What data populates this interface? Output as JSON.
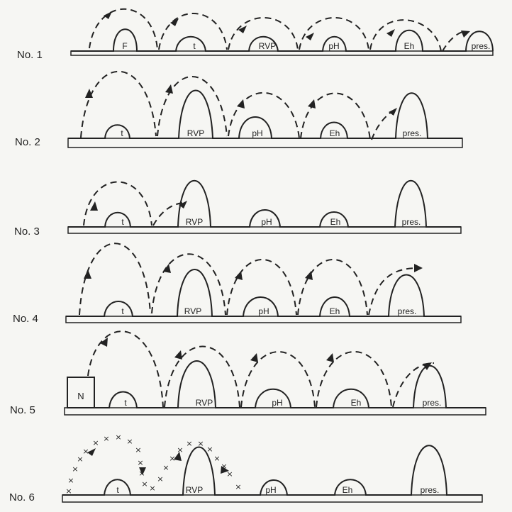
{
  "figure": {
    "rows": [
      {
        "id": "row1",
        "label": "No. 1",
        "hurdles": [
          "F",
          "t",
          "RVP",
          "pH",
          "Eh",
          "pres."
        ]
      },
      {
        "id": "row2",
        "label": "No. 2",
        "hurdles": [
          "t",
          "RVP",
          "pH",
          "Eh",
          "pres."
        ]
      },
      {
        "id": "row3",
        "label": "No. 3",
        "hurdles": [
          "t",
          "RVP",
          "pH",
          "Eh",
          "pres."
        ]
      },
      {
        "id": "row4",
        "label": "No. 4",
        "hurdles": [
          "t",
          "RVP",
          "pH",
          "Eh",
          "pres."
        ]
      },
      {
        "id": "row5",
        "label": "No. 5",
        "box_label": "N",
        "hurdles": [
          "t",
          "RVP",
          "pH",
          "Eh",
          "pres."
        ]
      },
      {
        "id": "row6",
        "label": "No. 6",
        "hurdles": [
          "t",
          "RVP",
          "pH",
          "Eh",
          "pres."
        ]
      }
    ]
  },
  "colors": {
    "ink": "#222222",
    "paper": "#f6f6f3"
  },
  "trajectory_styles": {
    "dashed": "dashed line with arrowheads",
    "crossed": "line of x marks with arrowheads"
  }
}
